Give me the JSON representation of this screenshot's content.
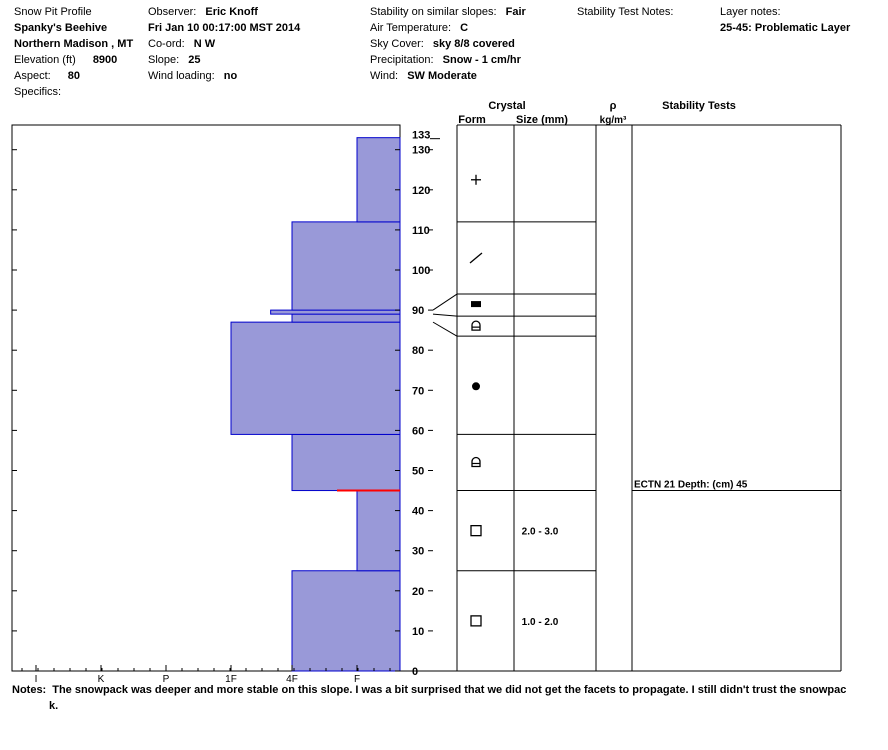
{
  "header": {
    "col1": {
      "title": "Snow Pit Profile",
      "location": "Spanky's Beehive",
      "region": "Northern Madison , MT",
      "elevation_label": "Elevation (ft)",
      "elevation_value": "8900",
      "aspect_label": "Aspect:",
      "aspect_value": "80",
      "specifics_label": "Specifics:"
    },
    "col2": {
      "observer_label": "Observer:",
      "observer_value": "Eric Knoff",
      "datetime": "Fri Jan 10 00:17:00 MST 2014",
      "coord_label": "Co-ord:",
      "coord_value": "N  W",
      "slope_label": "Slope:",
      "slope_value": "25",
      "wind_loading_label": "Wind loading:",
      "wind_loading_value": "no"
    },
    "col3": {
      "stability_label": "Stability on similar slopes:",
      "stability_value": "Fair",
      "air_temp_label": "Air Temperature:",
      "air_temp_value": "C",
      "sky_label": "Sky Cover:",
      "sky_value": "sky 8/8 covered",
      "precip_label": "Precipitation:",
      "precip_value": "Snow - 1 cm/hr",
      "wind_label": "Wind:",
      "wind_value": "SW Moderate"
    },
    "col4": {
      "stability_notes_label": "Stability Test Notes:"
    },
    "col5": {
      "layer_notes_label": "Layer notes:",
      "layer_notes_value": "25-45: Problematic Layer"
    }
  },
  "table_headers": {
    "crystal": "Crystal",
    "form": "Form",
    "size": "Size (mm)",
    "rho": "ρ",
    "density_unit": "kg/m³",
    "stability_tests": "Stability Tests"
  },
  "chart_data": {
    "type": "snow-pit-profile",
    "y_axis": {
      "min": 0,
      "max": 133,
      "ticks": [
        0,
        10,
        20,
        30,
        40,
        50,
        60,
        70,
        80,
        90,
        100,
        110,
        120,
        130
      ],
      "top_label": "133"
    },
    "hardness_scale": [
      "I",
      "K",
      "P",
      "1F",
      "4F",
      "F"
    ],
    "layers": [
      {
        "bottom": 0,
        "top": 25,
        "hardness": 4,
        "form": "square",
        "size": "1.0 - 2.0"
      },
      {
        "bottom": 25,
        "top": 45,
        "hardness": 5,
        "form": "square",
        "size": "2.0 - 3.0"
      },
      {
        "bottom": 45,
        "top": 59,
        "hardness": 4,
        "form": "hollow-round",
        "size": ""
      },
      {
        "bottom": 59,
        "top": 87,
        "hardness": 3,
        "form": "round",
        "size": ""
      },
      {
        "bottom": 87,
        "top": 89,
        "hardness": 4,
        "form": "hollow-round",
        "size": ""
      },
      {
        "bottom": 89,
        "top": 90,
        "hardness": 3.65,
        "form": "filled-rect",
        "size": ""
      },
      {
        "bottom": 90,
        "top": 112,
        "hardness": 4,
        "form": "slash",
        "size": ""
      },
      {
        "bottom": 112,
        "top": 133,
        "hardness": 5,
        "form": "plus",
        "size": ""
      }
    ],
    "problem_layer_depth": 45,
    "stability_tests": [
      {
        "depth": 45,
        "text": "ECTN 21   Depth: (cm) 45"
      }
    ]
  },
  "notes": {
    "label": "Notes:",
    "text": "The snowpack was deeper and more stable on this slope. I was a bit surprised that we did not get the facets to propagate. I still didn't trust the snowpac",
    "text_wrap": "k."
  }
}
